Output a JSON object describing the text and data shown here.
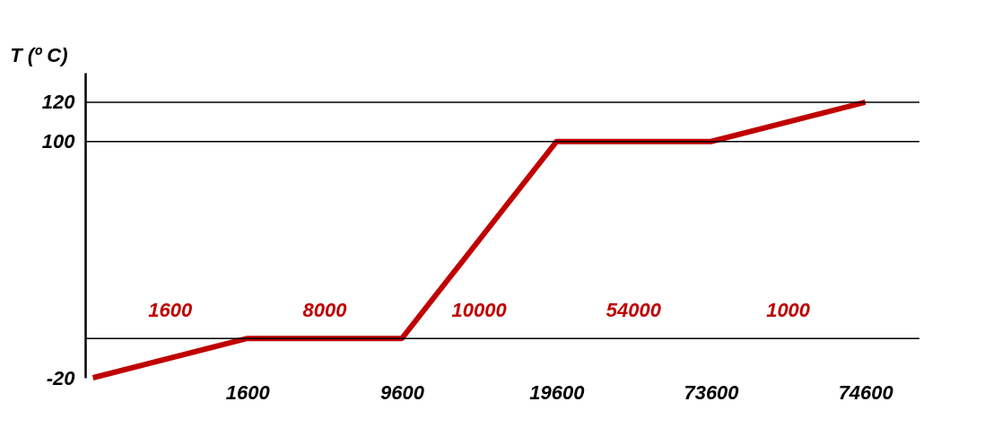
{
  "chart_data": {
    "type": "line",
    "ylabel": "T (º C)",
    "categories": [
      null,
      "1600",
      "9600",
      "19600",
      "73600",
      "74600"
    ],
    "series": [
      {
        "color": "#c00000",
        "values": [
          -20,
          0,
          0,
          100,
          100,
          120
        ]
      }
    ],
    "ylim": [
      -20,
      135
    ],
    "yticks": [
      -20,
      100,
      120
    ],
    "ref_lines": [
      {
        "axis": "y",
        "value": 0,
        "color": "#000000"
      },
      {
        "axis": "y",
        "value": 100,
        "color": "#000000"
      },
      {
        "axis": "y",
        "value": 120,
        "color": "#000000"
      }
    ],
    "annotations": [
      "1600",
      "8000",
      "10000",
      "54000",
      "1000"
    ],
    "marker": "none",
    "line_style": "solid"
  }
}
